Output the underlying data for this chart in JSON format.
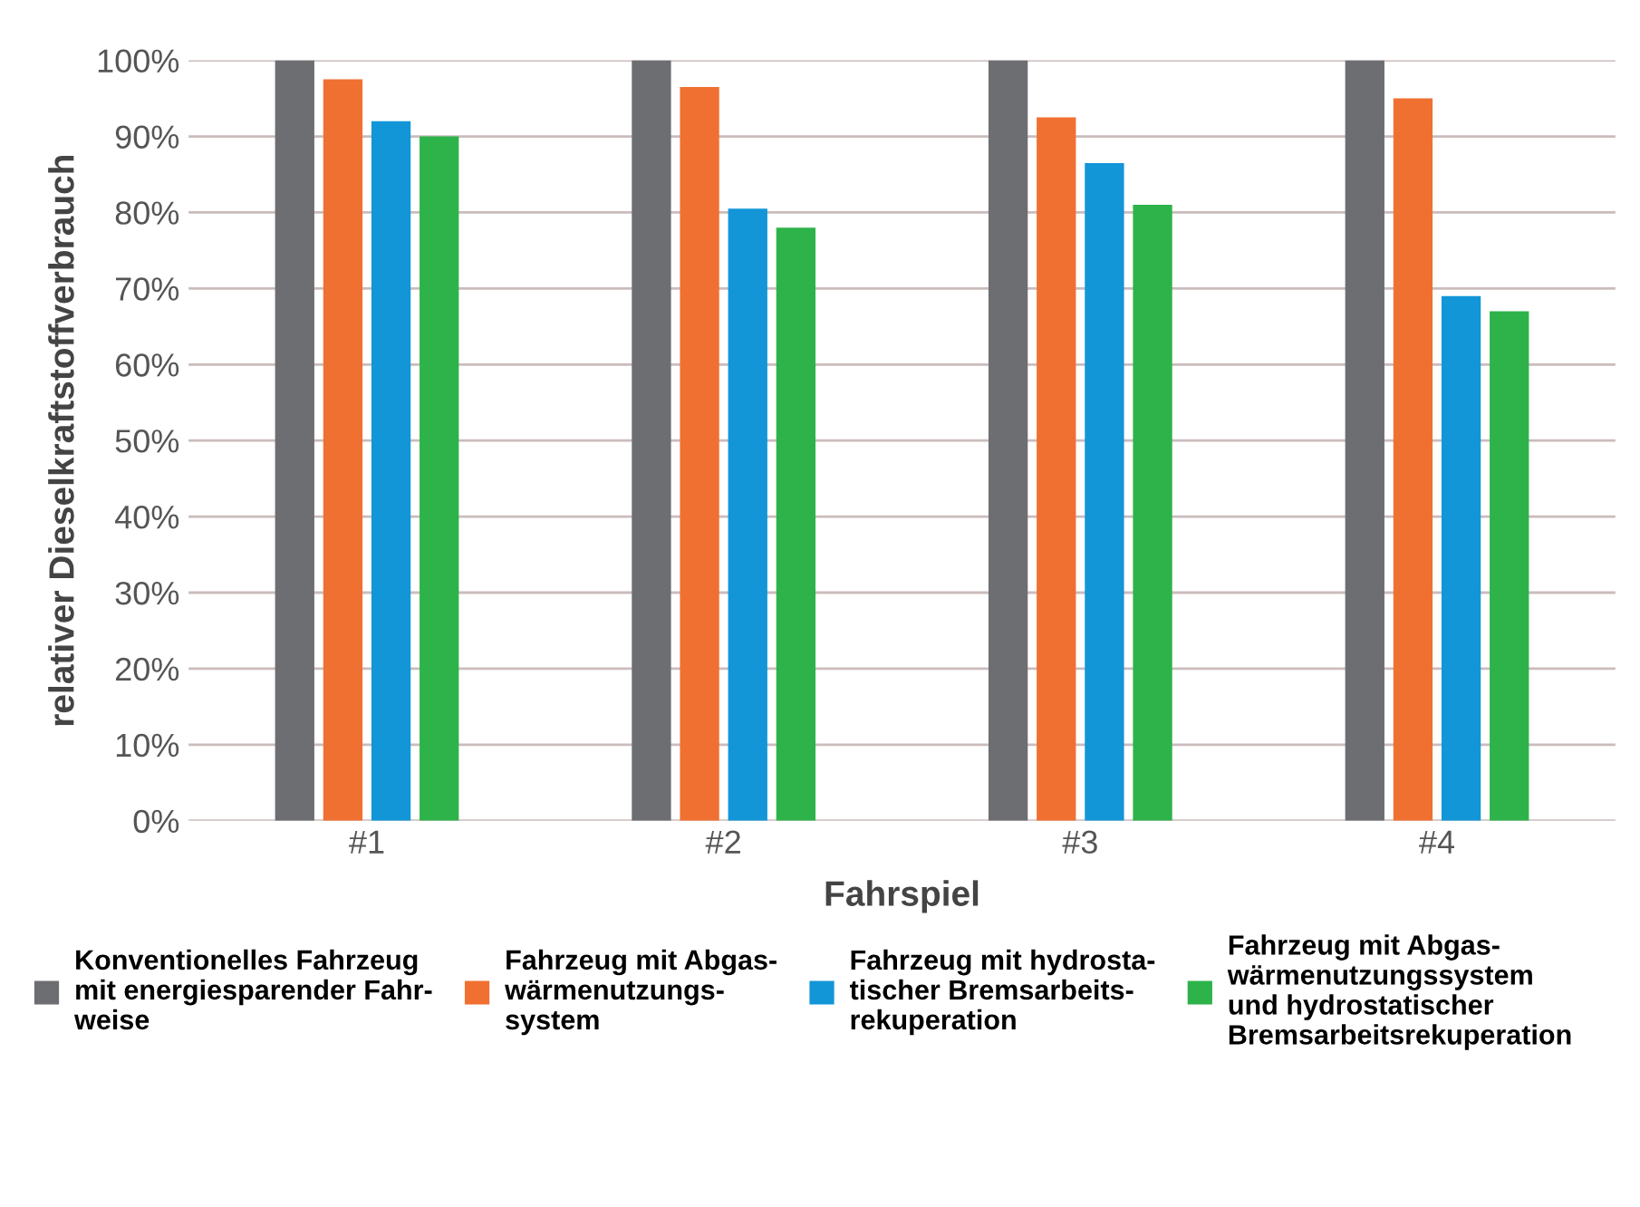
{
  "chart_data": {
    "type": "bar",
    "xlabel": "Fahrspiel",
    "ylabel": "relativer Dieselkraftstoffverbrauch",
    "categories": [
      "#1",
      "#2",
      "#3",
      "#4"
    ],
    "series": [
      {
        "name": "Konventionelles Fahrzeug\nmit energiesparender Fahr-\nweise",
        "color": "#6d6e71",
        "values": [
          100,
          100,
          100,
          100
        ]
      },
      {
        "name": "Fahrzeug mit Abgas-\nwärmenutzungs-\nsystem",
        "color": "#f07032",
        "values": [
          97.5,
          96.5,
          92.5,
          95
        ]
      },
      {
        "name": "Fahrzeug mit hydrosta-\ntischer Bremsarbeits-\nrekuperation",
        "color": "#1296d8",
        "values": [
          92,
          80.5,
          86.5,
          69
        ]
      },
      {
        "name": "Fahrzeug mit Abgas-\nwärmenutzungssystem\nund hydrostatischer\nBremsarbeitsrekuperation",
        "color": "#2db34a",
        "values": [
          90,
          78,
          81,
          67
        ]
      }
    ],
    "ylim": [
      0,
      100
    ],
    "yticks": [
      {
        "value": 0,
        "label": "0%"
      },
      {
        "value": 10,
        "label": "10%"
      },
      {
        "value": 20,
        "label": "20%"
      },
      {
        "value": 30,
        "label": "30%"
      },
      {
        "value": 40,
        "label": "40%"
      },
      {
        "value": 50,
        "label": "50%"
      },
      {
        "value": 60,
        "label": "60%"
      },
      {
        "value": 70,
        "label": "70%"
      },
      {
        "value": 80,
        "label": "80%"
      },
      {
        "value": 90,
        "label": "90%"
      },
      {
        "value": 100,
        "label": "100%"
      }
    ],
    "grid": "y",
    "legend": "bottom"
  }
}
